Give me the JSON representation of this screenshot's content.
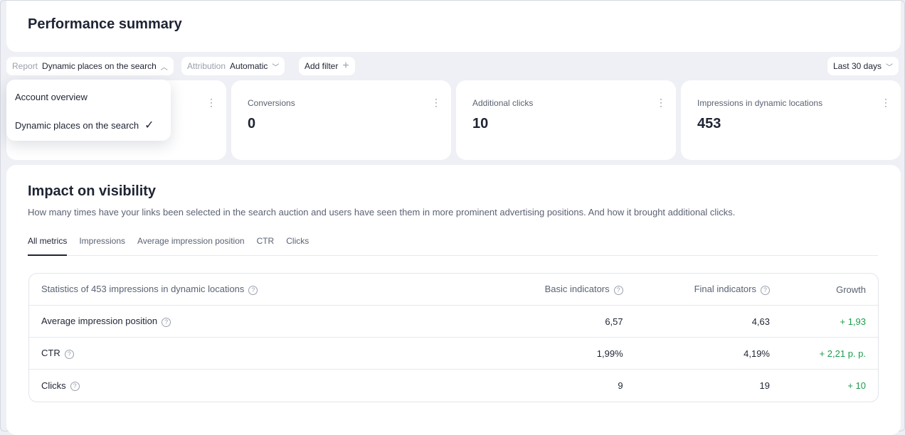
{
  "header": {
    "title": "Performance summary"
  },
  "filters": {
    "report_label": "Report",
    "report_value": "Dynamic places on the search",
    "attribution_label": "Attribution",
    "attribution_value": "Automatic",
    "add_filter": "Add filter",
    "period": "Last 30 days"
  },
  "report_dropdown": {
    "options": [
      "Account overview",
      "Dynamic places on the search"
    ],
    "selected": "Dynamic places on the search"
  },
  "metrics": [
    {
      "label": "Conversions",
      "value": "0"
    },
    {
      "label": "Additional clicks",
      "value": "10"
    },
    {
      "label": "Impressions in dynamic locations",
      "value": "453"
    }
  ],
  "section": {
    "title": "Impact on visibility",
    "description": "How many times have your links been selected in the search auction and users have seen them in more prominent advertising positions. And how it brought additional clicks.",
    "tabs": [
      "All metrics",
      "Impressions",
      "Average impression position",
      "CTR",
      "Clicks"
    ],
    "active_tab": "All metrics"
  },
  "table": {
    "headers": [
      "Statistics of 453 impressions in dynamic locations",
      "Basic indicators",
      "Final indicators",
      "Growth"
    ],
    "rows": [
      {
        "name": "Average impression position",
        "basic": "6,57",
        "final": "4,63",
        "growth": "+ 1,93"
      },
      {
        "name": "CTR",
        "basic": "1,99%",
        "final": "4,19%",
        "growth": "+ 2,21 p. p."
      },
      {
        "name": "Clicks",
        "basic": "9",
        "final": "19",
        "growth": "+ 10"
      }
    ]
  },
  "colors": {
    "growth": "#1a9e4b",
    "background": "#eef0f5"
  }
}
